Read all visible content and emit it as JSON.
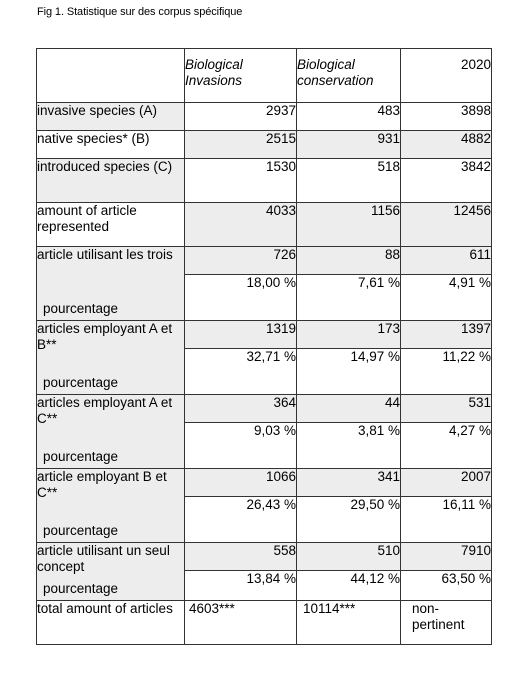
{
  "caption": "Fig 1. Statistique sur des corpus spécifique",
  "headers": {
    "empty": "",
    "col1": "Biological Invasions",
    "col2": "Biological conservation",
    "col3": "2020"
  },
  "rows": {
    "invasive": {
      "label": "invasive species (A)",
      "c1": "2937",
      "c2": "483",
      "c3": "3898"
    },
    "native": {
      "label": "native species* (B)",
      "c1": "2515",
      "c2": "931",
      "c3": "4882"
    },
    "introduced": {
      "label": "introduced species (C)",
      "c1": "1530",
      "c2": "518",
      "c3": "3842"
    },
    "amount": {
      "label": "amount of article represented",
      "c1": "4033",
      "c2": "1156",
      "c3": "12456"
    },
    "trois": {
      "label": "article utilisant les trois",
      "sub": "pourcentage",
      "c1": "726",
      "c2": "88",
      "c3": "611",
      "p1": "18,00 %",
      "p2": "7,61 %",
      "p3": "4,91 %"
    },
    "ab": {
      "label": "articles employant A et B**",
      "sub": "pourcentage",
      "c1": "1319",
      "c2": "173",
      "c3": "1397",
      "p1": "32,71 %",
      "p2": "14,97 %",
      "p3": "11,22 %"
    },
    "ac": {
      "label": "articles employant A et C**",
      "sub": "pourcentage",
      "c1": "364",
      "c2": "44",
      "c3": "531",
      "p1": "9,03 %",
      "p2": "3,81 %",
      "p3": "4,27 %"
    },
    "bc": {
      "label": "article employant B et C**",
      "sub": "pourcentage",
      "c1": "1066",
      "c2": "341",
      "c3": "2007",
      "p1": "26,43 %",
      "p2": "29,50 %",
      "p3": "16,11 %"
    },
    "seul": {
      "label": "article utilisant un seul concept",
      "sub": "pourcentage",
      "c1": "558",
      "c2": "510",
      "c3": "7910",
      "p1": "13,84 %",
      "p2": "44,12 %",
      "p3": "63,50 %"
    },
    "total": {
      "label": "total amount of articles",
      "c1": "4603***",
      "c2": "10114***",
      "c3": "non-pertinent"
    }
  }
}
